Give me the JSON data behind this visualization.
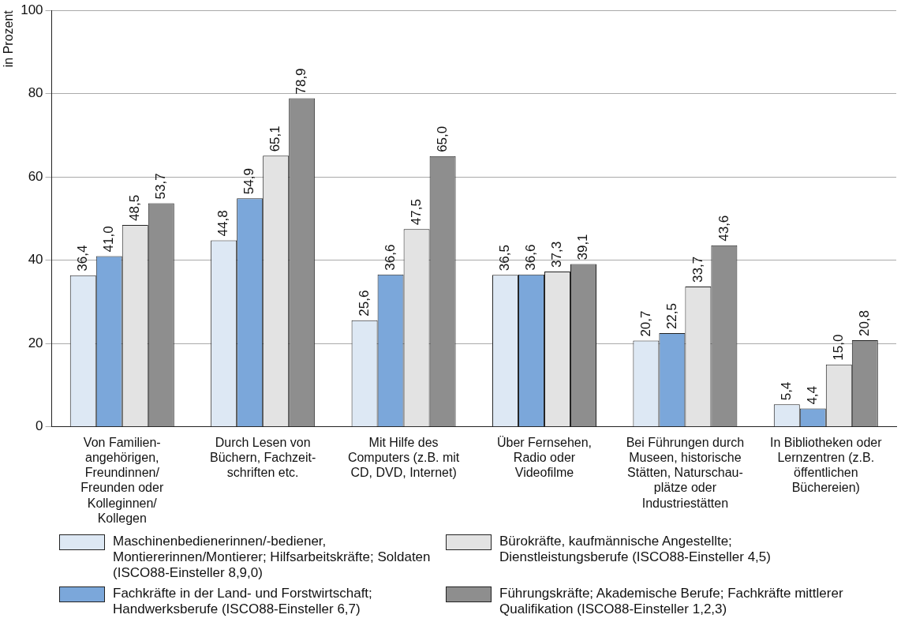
{
  "chart_data": {
    "type": "bar",
    "ylabel": "in Prozent",
    "categories": [
      "Von Familien-angehörigen, Freundinnen/Freunden oder Kolleginnen/Kollegen",
      "Durch Lesen von Büchern, Fachzeit-schriften etc.",
      "Mit Hilfe des Computers (z.B. mit CD, DVD, Internet)",
      "Über Fernsehen, Radio oder Videofilme",
      "Bei Führungen durch Museen, historische Stätten, Naturschau-plätze oder Industriestätten",
      "In Bibliotheken oder Lernzentren (z.B. öffentlichen Büchereien)"
    ],
    "series": [
      {
        "name": "Maschinenbedienerinnen/-bediener, Montiererinnen/Montierer; Hilfsarbeitskräfte; Soldaten (ISCO88-Einsteller 8,9,0)",
        "color": "#dde8f4",
        "values": [
          36.4,
          44.8,
          25.6,
          36.5,
          20.7,
          5.4
        ],
        "value_labels": [
          "36,4",
          "44,8",
          "25,6",
          "36,5",
          "20,7",
          "5,4"
        ]
      },
      {
        "name": "Fachkräfte in der Land- und Forstwirtschaft; Handwerksberufe (ISCO88-Einsteller 6,7)",
        "color": "#7ba7da",
        "values": [
          41.0,
          54.9,
          36.6,
          36.6,
          22.5,
          4.4
        ],
        "value_labels": [
          "41,0",
          "54,9",
          "36,6",
          "36,6",
          "22,5",
          "4,4"
        ]
      },
      {
        "name": "Bürokräfte, kaufmännische Angestellte; Dienstleistungsberufe (ISCO88-Einsteller 4,5)",
        "color": "#e3e3e3",
        "values": [
          48.5,
          65.1,
          47.5,
          37.3,
          33.7,
          15.0
        ],
        "value_labels": [
          "48,5",
          "65,1",
          "47,5",
          "37,3",
          "33,7",
          "15,0"
        ]
      },
      {
        "name": "Führungskräfte; Akademische Berufe; Fachkräfte mittlerer Qualifikation (ISCO88-Einsteller 1,2,3)",
        "color": "#8e8e8e",
        "values": [
          53.7,
          78.9,
          65.0,
          39.1,
          43.6,
          20.8
        ],
        "value_labels": [
          "53,7",
          "78,9",
          "65,0",
          "39,1",
          "43,6",
          "20,8"
        ]
      }
    ],
    "ylim": [
      0,
      100
    ],
    "yticks": [
      0,
      20,
      40,
      60,
      80,
      100
    ],
    "grid": "y",
    "legend": "bottom"
  }
}
